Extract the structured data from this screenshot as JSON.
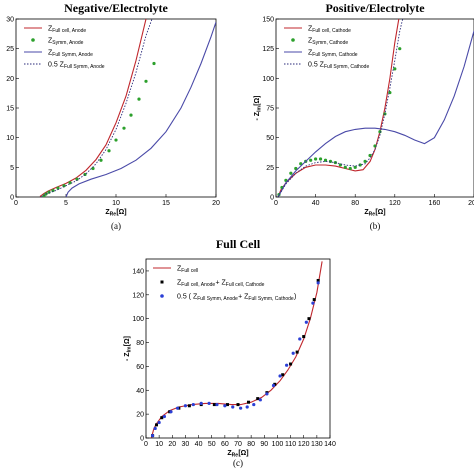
{
  "chart_data": [
    {
      "id": "a",
      "type": "line",
      "title": "Negative/Electrolyte",
      "panel_label": "(a)",
      "xlabel": "Z",
      "xlabel_sub": "Re",
      "xlabel_unit": " [Ω]",
      "ylabel": "",
      "ylabel_sub": "",
      "ylabel_unit": "",
      "xlim": [
        0,
        20
      ],
      "ylim": [
        0,
        30
      ],
      "xticks": [
        0,
        5,
        10,
        15,
        20
      ],
      "yticks": [
        0,
        5,
        10,
        15,
        20,
        25,
        30
      ],
      "legend_position": "top-left",
      "series": [
        {
          "name": "Z",
          "name_sub": "Full cell, Anode",
          "style": "line",
          "color": "#c0272d",
          "x": [
            2.4,
            2.8,
            3.2,
            4.0,
            5.0,
            6.0,
            7.0,
            8.0,
            9.0,
            10.0,
            11.0,
            12.0,
            13.0
          ],
          "y": [
            0.1,
            0.6,
            1.0,
            1.6,
            2.3,
            3.2,
            4.5,
            6.3,
            8.8,
            12.5,
            17.0,
            23.0,
            30.0
          ]
        },
        {
          "name": "Z",
          "name_sub": "Symm, Anode",
          "style": "markers",
          "color": "#2ca02c",
          "x": [
            2.8,
            3.0,
            3.3,
            3.7,
            4.2,
            4.8,
            5.4,
            6.1,
            6.9,
            7.7,
            8.5,
            9.3,
            10.0,
            10.8,
            11.5,
            12.3,
            13.0,
            13.8
          ],
          "y": [
            0.2,
            0.5,
            0.8,
            1.1,
            1.5,
            1.9,
            2.4,
            3.0,
            3.8,
            4.8,
            6.2,
            7.8,
            9.6,
            11.6,
            13.8,
            16.5,
            19.5,
            22.5
          ]
        },
        {
          "name": "Z",
          "name_sub": "Full Symm, Anode",
          "style": "line",
          "color": "#4a4aa8",
          "x": [
            5.0,
            5.2,
            5.6,
            6.3,
            7.5,
            9.0,
            10.5,
            12.0,
            13.5,
            15.0,
            16.5,
            17.5,
            18.5,
            19.5,
            20.0
          ],
          "y": [
            0.0,
            0.8,
            1.5,
            2.2,
            3.0,
            3.8,
            4.8,
            6.2,
            8.2,
            11.0,
            15.0,
            18.5,
            22.5,
            27.0,
            29.5
          ]
        },
        {
          "name": "0.5 Z",
          "name_sub": "Full Symm, Anode",
          "style": "dotted",
          "color": "#2a2a7a",
          "x": [
            2.5,
            3.0,
            4.0,
            5.0,
            6.0,
            7.0,
            8.0,
            9.0,
            10.0,
            11.0,
            12.0,
            13.0,
            13.6
          ],
          "y": [
            0.0,
            0.5,
            1.1,
            1.9,
            2.7,
            3.9,
            5.6,
            8.0,
            11.4,
            15.8,
            21.0,
            27.2,
            30.0
          ]
        }
      ]
    },
    {
      "id": "b",
      "type": "line",
      "title": "Positive/Electrolyte",
      "panel_label": "(b)",
      "xlabel": "Z",
      "xlabel_sub": "Re",
      "xlabel_unit": " [Ω]",
      "ylabel": "- Z",
      "ylabel_sub": "Im",
      "ylabel_unit": " [Ω]",
      "xlim": [
        0,
        200
      ],
      "ylim": [
        0,
        150
      ],
      "xticks": [
        0,
        40,
        80,
        120,
        160,
        200
      ],
      "yticks": [
        0,
        25,
        50,
        75,
        100,
        125,
        150
      ],
      "legend_position": "top-left",
      "series": [
        {
          "name": "Z",
          "name_sub": "Full cell, Cathode",
          "style": "line",
          "color": "#c0272d",
          "x": [
            2,
            5,
            10,
            20,
            30,
            40,
            50,
            60,
            70,
            80,
            88,
            95,
            100,
            105,
            110,
            115,
            120,
            124
          ],
          "y": [
            0,
            6,
            12,
            20,
            25,
            27,
            27,
            26,
            24,
            22,
            23,
            30,
            40,
            55,
            75,
            100,
            130,
            150
          ]
        },
        {
          "name": "Z",
          "name_sub": "Symm, Cathode",
          "style": "markers",
          "color": "#2ca02c",
          "x": [
            3,
            6,
            10,
            15,
            20,
            25,
            30,
            35,
            40,
            45,
            50,
            55,
            60,
            65,
            70,
            75,
            80,
            85,
            90,
            95,
            100,
            105,
            110,
            115,
            120,
            125
          ],
          "y": [
            2,
            8,
            14,
            20,
            24,
            28,
            30,
            31,
            32,
            32,
            31,
            30,
            29,
            27,
            25,
            24,
            25,
            27,
            30,
            35,
            43,
            55,
            70,
            88,
            108,
            125
          ]
        },
        {
          "name": "Z",
          "name_sub": "Full Symm, Cathode",
          "style": "line",
          "color": "#4a4aa8",
          "x": [
            2,
            10,
            20,
            30,
            40,
            50,
            60,
            70,
            80,
            90,
            100,
            110,
            120,
            130,
            140,
            150,
            160,
            170,
            180,
            190,
            200
          ],
          "y": [
            0,
            12,
            22,
            30,
            38,
            45,
            51,
            55,
            57,
            58,
            58,
            57,
            55,
            52,
            48,
            45,
            50,
            65,
            85,
            110,
            140
          ]
        },
        {
          "name": "0.5 Z",
          "name_sub": "Full Symm, Cathode",
          "style": "dotted",
          "color": "#2a2a7a",
          "x": [
            2,
            10,
            20,
            30,
            40,
            50,
            60,
            70,
            80,
            90,
            95,
            100,
            105,
            110,
            115,
            120,
            125,
            128
          ],
          "y": [
            0,
            11,
            20,
            26,
            29,
            30,
            29,
            27,
            26,
            28,
            33,
            40,
            52,
            70,
            92,
            115,
            140,
            150
          ]
        }
      ]
    },
    {
      "id": "c",
      "type": "line",
      "title": "Full Cell",
      "panel_label": "(c)",
      "xlabel": "Z",
      "xlabel_sub": "Re",
      "xlabel_unit": " [Ω]",
      "ylabel": "- Z",
      "ylabel_sub": "Im",
      "ylabel_unit": " [Ω]",
      "xlim": [
        0,
        140
      ],
      "ylim": [
        0,
        150
      ],
      "xticks": [
        0,
        10,
        20,
        30,
        40,
        50,
        60,
        70,
        80,
        90,
        100,
        110,
        120,
        130,
        140
      ],
      "yticks": [
        0,
        20,
        40,
        60,
        80,
        100,
        120,
        140
      ],
      "legend_position": "top-left",
      "series": [
        {
          "name": "Z",
          "name_sub": "Full cell",
          "style": "line",
          "color": "#c0272d",
          "x": [
            4,
            6,
            8,
            12,
            18,
            25,
            35,
            45,
            55,
            65,
            72,
            80,
            88,
            95,
            102,
            108,
            114,
            120,
            125,
            130,
            134
          ],
          "y": [
            0,
            8,
            12,
            18,
            23,
            26,
            28,
            29,
            29,
            28,
            28,
            30,
            34,
            40,
            48,
            57,
            68,
            83,
            100,
            122,
            148
          ]
        },
        {
          "name": "Z",
          "name_sub": "Full cell, Anode",
          "name_extra": " + Z",
          "name_extra_sub": "Full cell, Cathode",
          "style": "markers-square",
          "color": "#000000",
          "x": [
            5,
            8,
            12,
            18,
            25,
            33,
            42,
            52,
            62,
            70,
            78,
            85,
            92,
            98,
            104,
            110,
            115,
            120,
            124,
            128,
            131
          ],
          "y": [
            2,
            11,
            17,
            22,
            25,
            27,
            28,
            28,
            28,
            28,
            30,
            33,
            38,
            45,
            53,
            62,
            72,
            85,
            100,
            116,
            132
          ]
        },
        {
          "name": "0.5 (",
          "name_mid": " Z",
          "name_sub": "Full Symm, Anode",
          "name_extra": " + Z",
          "name_extra_sub": "Full Symm, Cathode",
          "name_end": " )",
          "style": "markers",
          "color": "#2b3fd6",
          "x": [
            5,
            7,
            10,
            14,
            19,
            24,
            30,
            36,
            42,
            48,
            54,
            60,
            66,
            72,
            77,
            82,
            87,
            92,
            97,
            102,
            107,
            112,
            117,
            122,
            127,
            131
          ],
          "y": [
            2,
            8,
            13,
            18,
            22,
            25,
            27,
            28,
            29,
            29,
            28,
            27,
            26,
            25,
            26,
            28,
            32,
            37,
            44,
            52,
            61,
            71,
            83,
            97,
            113,
            130
          ]
        }
      ]
    }
  ]
}
